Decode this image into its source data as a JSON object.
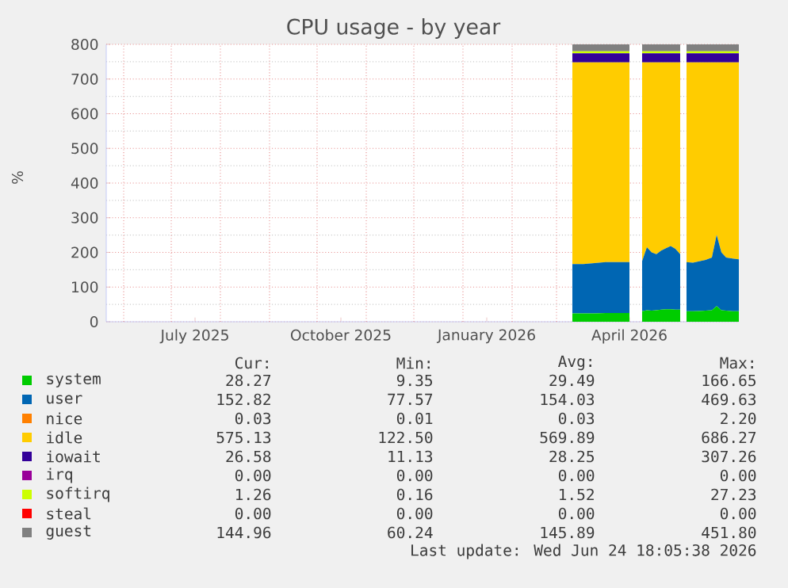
{
  "chart_data": {
    "type": "area",
    "title": "CPU usage - by year",
    "ylabel": "%",
    "stacked": true,
    "legend": "bottom",
    "grid": true,
    "xlim": [
      "2025-05-21",
      "2026-06-24"
    ],
    "xticks": [
      {
        "value": "2025-06-01",
        "label": null
      },
      {
        "value": "2025-07-01",
        "label": null
      },
      {
        "value": "2025-07-16",
        "label": "July 2025"
      },
      {
        "value": "2025-08-01",
        "label": null
      },
      {
        "value": "2025-09-01",
        "label": null
      },
      {
        "value": "2025-10-01",
        "label": null
      },
      {
        "value": "2025-10-16",
        "label": "October 2025"
      },
      {
        "value": "2025-11-01",
        "label": null
      },
      {
        "value": "2025-12-01",
        "label": null
      },
      {
        "value": "2026-01-01",
        "label": null
      },
      {
        "value": "2026-01-16",
        "label": "January 2026"
      },
      {
        "value": "2026-02-01",
        "label": null
      },
      {
        "value": "2026-03-01",
        "label": null
      },
      {
        "value": "2026-04-01",
        "label": null
      },
      {
        "value": "2026-04-16",
        "label": "April 2026"
      },
      {
        "value": "2026-05-01",
        "label": null
      },
      {
        "value": "2026-06-01",
        "label": null
      }
    ],
    "ylim": [
      0,
      800
    ],
    "yticks": [
      0,
      100,
      200,
      300,
      400,
      500,
      600,
      700,
      800
    ],
    "x": [
      "2026-03-11",
      "2026-03-18",
      "2026-03-25",
      "2026-04-01",
      "2026-04-08",
      "2026-04-16",
      "2026-04-20",
      "2026-04-24",
      "2026-04-27",
      "2026-04-30",
      "2026-05-03",
      "2026-05-06",
      "2026-05-09",
      "2026-05-12",
      "2026-05-15",
      "2026-05-18",
      "2026-05-20",
      "2026-05-22",
      "2026-05-26",
      "2026-05-30",
      "2026-06-03",
      "2026-06-07",
      "2026-06-10",
      "2026-06-13",
      "2026-06-16",
      "2026-06-20",
      "2026-06-24"
    ],
    "series": [
      {
        "name": "system",
        "color": "#00cc00",
        "values": [
          24,
          24,
          24,
          25,
          25,
          25,
          null,
          30,
          33,
          32,
          33,
          35,
          36,
          36,
          35,
          35,
          null,
          30,
          30,
          31,
          32,
          33,
          45,
          33,
          32,
          30,
          30
        ]
      },
      {
        "name": "user",
        "color": "#0066b3",
        "values": [
          142,
          142,
          145,
          147,
          147,
          147,
          null,
          145,
          182,
          168,
          162,
          170,
          176,
          182,
          175,
          160,
          null,
          142,
          140,
          143,
          146,
          152,
          205,
          167,
          153,
          152,
          150
        ]
      },
      {
        "name": "nice",
        "color": "#ff8000",
        "values": [
          null,
          null,
          null,
          null,
          null,
          null,
          null,
          null,
          null,
          null,
          null,
          null,
          null,
          null,
          null,
          null,
          null,
          null,
          null,
          null,
          null,
          null,
          null,
          null,
          null,
          null,
          null
        ]
      },
      {
        "name": "idle",
        "color": "#ffcc00",
        "values": [
          582,
          582,
          579,
          576,
          576,
          576,
          null,
          573,
          533,
          548,
          553,
          543,
          536,
          530,
          538,
          553,
          null,
          576,
          578,
          574,
          570,
          563,
          498,
          548,
          563,
          566,
          568
        ]
      },
      {
        "name": "iowait",
        "color": "#330099",
        "values": [
          26,
          26,
          26,
          26,
          26,
          26,
          null,
          26,
          26,
          26,
          26,
          26,
          26,
          26,
          26,
          26,
          null,
          26,
          26,
          26,
          26,
          26,
          26,
          26,
          26,
          26,
          26
        ]
      },
      {
        "name": "irq",
        "color": "#990099",
        "values": [
          null,
          null,
          null,
          null,
          null,
          null,
          null,
          null,
          null,
          null,
          null,
          null,
          null,
          null,
          null,
          null,
          null,
          null,
          null,
          null,
          null,
          null,
          null,
          null,
          null,
          null,
          null
        ]
      },
      {
        "name": "softirq",
        "color": "#ccff00",
        "values": [
          6,
          6,
          6,
          6,
          6,
          6,
          null,
          6,
          6,
          6,
          6,
          6,
          6,
          6,
          6,
          6,
          null,
          6,
          6,
          6,
          6,
          6,
          6,
          6,
          6,
          6,
          6
        ]
      },
      {
        "name": "steal",
        "color": "#ff0000",
        "values": [
          null,
          null,
          null,
          null,
          null,
          null,
          null,
          null,
          null,
          null,
          null,
          null,
          null,
          null,
          null,
          null,
          null,
          null,
          null,
          null,
          null,
          null,
          null,
          null,
          null,
          null,
          null
        ]
      },
      {
        "name": "guest",
        "color": "#808080",
        "values": [
          20,
          20,
          20,
          20,
          20,
          20,
          null,
          20,
          20,
          20,
          20,
          20,
          20,
          20,
          20,
          20,
          null,
          20,
          20,
          20,
          20,
          20,
          20,
          20,
          20,
          20,
          20
        ]
      }
    ],
    "annotations": [
      "Cur:",
      "Min:",
      "Avg:",
      "Max:",
      "28.27",
      "9.35",
      "29.49",
      "166.65",
      "152.82",
      "77.57",
      "154.03",
      "469.63",
      "0.03",
      "0.01",
      "0.03",
      "2.20",
      "575.13",
      "122.50",
      "569.89",
      "686.27",
      "26.58",
      "11.13",
      "28.25",
      "307.26",
      "0.00",
      "0.00",
      "0.00",
      "0.00",
      "1.26",
      "0.16",
      "1.52",
      "27.23",
      "0.00",
      "0.00",
      "0.00",
      "0.00",
      "144.96",
      "60.24",
      "145.89",
      "451.80",
      "Last update: Wed Jun 24 18:05:38 2026"
    ]
  }
}
